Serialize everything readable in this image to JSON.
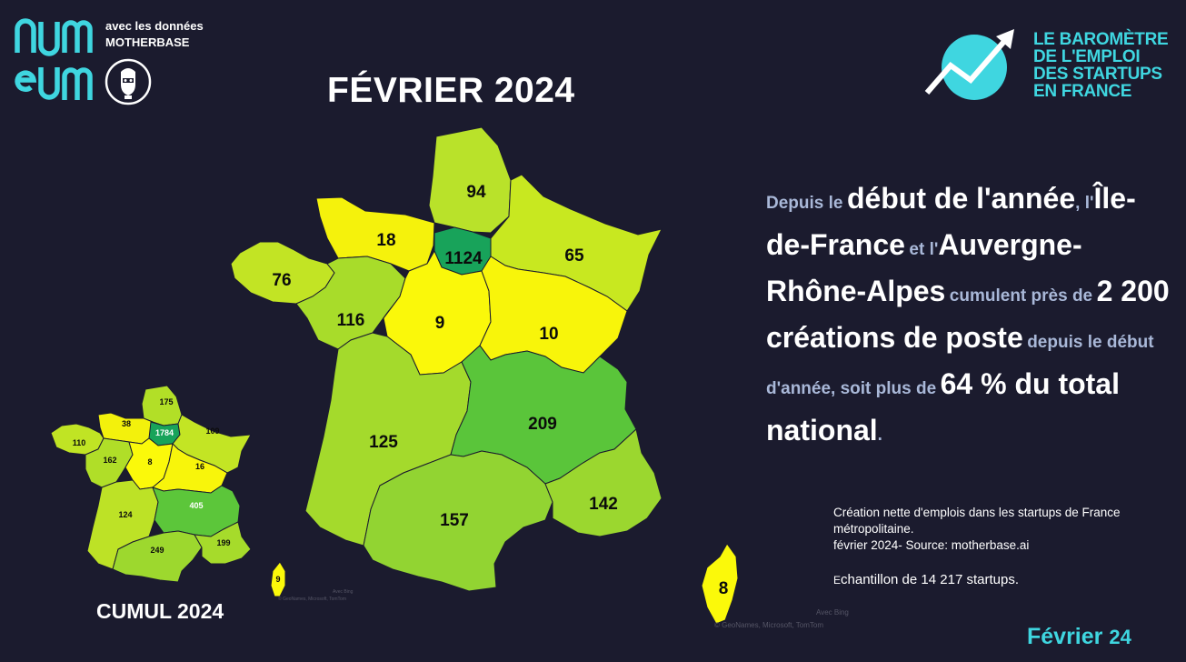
{
  "branding": {
    "logo_text": "numeum",
    "line1": "avec les données",
    "line2": "MOTHERBASE",
    "robot_icon": "robot-icon"
  },
  "barometer": {
    "lines": [
      "LE BAROMÈTRE",
      "DE L'EMPLOI",
      "DES STARTUPS",
      "EN FRANCE"
    ],
    "icon": "trend-arrow-icon",
    "accent_color": "#3fd6e0"
  },
  "title": "FÉVRIER 2024",
  "main_map": {
    "regions": [
      {
        "name": "Hauts-de-France",
        "value": "94",
        "color": "#b9e22a"
      },
      {
        "name": "Normandie",
        "value": "18",
        "color": "#f5f20c"
      },
      {
        "name": "Île-de-France",
        "value": "1124",
        "color": "#18a35a"
      },
      {
        "name": "Grand Est",
        "value": "65",
        "color": "#c8e820"
      },
      {
        "name": "Bretagne",
        "value": "76",
        "color": "#c2e424"
      },
      {
        "name": "Pays de la Loire",
        "value": "116",
        "color": "#a8dc2a"
      },
      {
        "name": "Centre-Val de Loire",
        "value": "9",
        "color": "#faf80a"
      },
      {
        "name": "Bourgogne-Franche-Comté",
        "value": "10",
        "color": "#f8f50a"
      },
      {
        "name": "Nouvelle-Aquitaine",
        "value": "125",
        "color": "#a4da2c"
      },
      {
        "name": "Auvergne-Rhône-Alpes",
        "value": "209",
        "color": "#5ac53a"
      },
      {
        "name": "Occitanie",
        "value": "157",
        "color": "#92d432"
      },
      {
        "name": "Provence-Alpes-Côte d'Azur",
        "value": "142",
        "color": "#9bd72f"
      },
      {
        "name": "Corse",
        "value": "8",
        "color": "#fbf90a"
      }
    ],
    "attribution_1": "Avec Bing",
    "attribution_2": "© GeoNames, Microsoft, TomTom"
  },
  "cumul_map": {
    "title": "CUMUL 2024",
    "regions": [
      {
        "name": "Hauts-de-France",
        "value": "175",
        "color": "#b2df27"
      },
      {
        "name": "Normandie",
        "value": "38",
        "color": "#f3f10c"
      },
      {
        "name": "Île-de-France",
        "value": "1784",
        "color": "#18a35a"
      },
      {
        "name": "Grand Est",
        "value": "109",
        "color": "#c3e524"
      },
      {
        "name": "Bretagne",
        "value": "110",
        "color": "#c0e424"
      },
      {
        "name": "Pays de la Loire",
        "value": "162",
        "color": "#b0de28"
      },
      {
        "name": "Centre-Val de Loire",
        "value": "8",
        "color": "#fbf90a"
      },
      {
        "name": "Bourgogne-Franche-Comté",
        "value": "16",
        "color": "#f8f50b"
      },
      {
        "name": "Nouvelle-Aquitaine",
        "value": "124",
        "color": "#bde226"
      },
      {
        "name": "Auvergne-Rhône-Alpes",
        "value": "405",
        "color": "#5cc63a"
      },
      {
        "name": "Occitanie",
        "value": "249",
        "color": "#9dd82e"
      },
      {
        "name": "Provence-Alpes-Côte d'Azur",
        "value": "199",
        "color": "#a6db2b"
      },
      {
        "name": "Corse",
        "value": "9",
        "color": "#fbf90a"
      }
    ],
    "attribution_1": "Avec Bing",
    "attribution_2": "© GeoNames, Microsoft, TomTom"
  },
  "narrative": {
    "p1": "Depuis le",
    "p2": "début de l'année",
    "p3": ", l'",
    "p4": "Île-de-France",
    "p5": "et l'",
    "p6": "Auvergne-Rhône-Alpes",
    "p7": "cumulent près de",
    "p8": "2 200 créations de poste",
    "p9": "depuis le début d'année, soit plus de",
    "p10": "64 % du total national",
    "p11": "."
  },
  "caption": {
    "line1": "Création nette d'emplois dans les startups de France métropolitaine.",
    "line2": "février 2024- Source: motherbase.ai"
  },
  "sample": {
    "first_letter": "E",
    "rest": "chantillon de 14 217 startups."
  },
  "footer": {
    "month": "Février",
    "year": "24"
  }
}
